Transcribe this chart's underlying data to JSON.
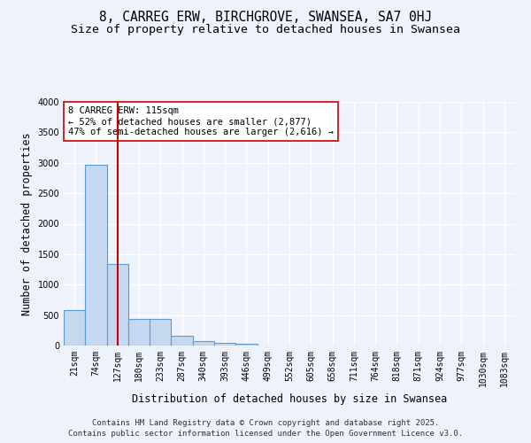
{
  "title_line1": "8, CARREG ERW, BIRCHGROVE, SWANSEA, SA7 0HJ",
  "title_line2": "Size of property relative to detached houses in Swansea",
  "xlabel": "Distribution of detached houses by size in Swansea",
  "ylabel": "Number of detached properties",
  "bar_labels": [
    "21sqm",
    "74sqm",
    "127sqm",
    "180sqm",
    "233sqm",
    "287sqm",
    "340sqm",
    "393sqm",
    "446sqm",
    "499sqm",
    "552sqm",
    "605sqm",
    "658sqm",
    "711sqm",
    "764sqm",
    "818sqm",
    "871sqm",
    "924sqm",
    "977sqm",
    "1030sqm",
    "1083sqm"
  ],
  "bar_values": [
    580,
    2970,
    1340,
    430,
    430,
    155,
    75,
    50,
    30,
    0,
    0,
    0,
    0,
    0,
    0,
    0,
    0,
    0,
    0,
    0,
    0
  ],
  "bar_color": "#c5d8f0",
  "bar_edge_color": "#5b9bd5",
  "bar_edge_width": 0.8,
  "ylim": [
    0,
    4000
  ],
  "yticks": [
    0,
    500,
    1000,
    1500,
    2000,
    2500,
    3000,
    3500,
    4000
  ],
  "red_line_x": 2,
  "red_line_color": "#cc0000",
  "annotation_box_text": "8 CARREG ERW: 115sqm\n← 52% of detached houses are smaller (2,877)\n47% of semi-detached houses are larger (2,616) →",
  "footer_line1": "Contains HM Land Registry data © Crown copyright and database right 2025.",
  "footer_line2": "Contains public sector information licensed under the Open Government Licence v3.0.",
  "bg_color": "#eef2fb",
  "plot_bg_color": "#eef2fb",
  "grid_color": "#ffffff",
  "title_fontsize": 10.5,
  "subtitle_fontsize": 9.5,
  "axis_label_fontsize": 8.5,
  "tick_fontsize": 7,
  "annotation_fontsize": 7.5,
  "footer_fontsize": 6.5
}
